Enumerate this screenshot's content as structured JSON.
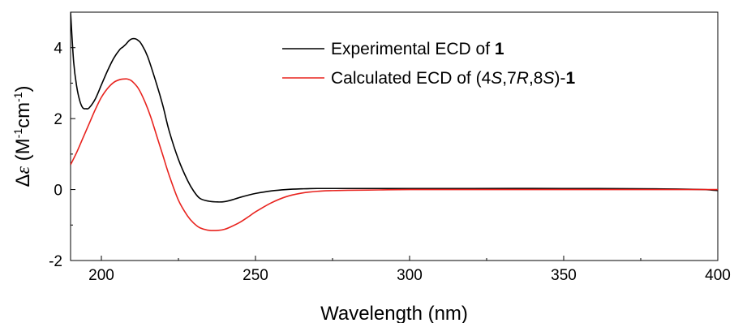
{
  "chart_data": {
    "type": "line",
    "xlabel": "Wavelength (nm)",
    "ylabel": {
      "delta": "Δ",
      "epsilon": "ε",
      "unit_open": " (M",
      "sup1": "-1",
      "cm": "cm",
      "sup2": "-1",
      "unit_close": ")"
    },
    "xlim": [
      190,
      400
    ],
    "ylim": [
      -2,
      5
    ],
    "xticks": [
      200,
      250,
      300,
      350,
      400
    ],
    "yticks": [
      -2,
      0,
      2,
      4
    ],
    "legend_position": "top-right",
    "series": [
      {
        "name_parts": [
          {
            "text": "Experimental ECD of ",
            "style": "normal"
          },
          {
            "text": "1",
            "style": "bold"
          }
        ],
        "color": "#000000",
        "x": [
          190,
          191,
          192,
          193,
          194,
          195,
          196,
          198,
          200,
          202,
          204,
          206,
          207,
          208,
          209,
          210,
          211,
          212,
          213,
          215,
          218,
          220,
          222,
          225,
          228,
          230,
          232,
          235,
          238,
          240,
          242,
          245,
          248,
          250,
          255,
          260,
          265,
          270,
          280,
          290,
          300,
          320,
          350,
          380,
          395,
          400
        ],
        "y": [
          5.0,
          3.6,
          2.9,
          2.5,
          2.3,
          2.28,
          2.3,
          2.55,
          2.95,
          3.35,
          3.7,
          3.95,
          4.02,
          4.1,
          4.2,
          4.25,
          4.25,
          4.2,
          4.1,
          3.75,
          2.95,
          2.35,
          1.65,
          0.85,
          0.25,
          -0.05,
          -0.25,
          -0.33,
          -0.35,
          -0.34,
          -0.3,
          -0.22,
          -0.15,
          -0.11,
          -0.04,
          0.0,
          0.02,
          0.03,
          0.03,
          0.03,
          0.03,
          0.03,
          0.03,
          0.02,
          0.0,
          -0.03
        ]
      },
      {
        "name_parts": [
          {
            "text": "Calculated ECD of (4",
            "style": "normal"
          },
          {
            "text": "S",
            "style": "italic"
          },
          {
            "text": ",7",
            "style": "normal"
          },
          {
            "text": "R",
            "style": "italic"
          },
          {
            "text": ",8",
            "style": "normal"
          },
          {
            "text": "S",
            "style": "italic"
          },
          {
            "text": ")-",
            "style": "normal"
          },
          {
            "text": "1",
            "style": "bold"
          }
        ],
        "color": "#e8231e",
        "x": [
          190,
          192,
          194,
          196,
          198,
          200,
          202,
          204,
          206,
          208,
          209,
          210,
          212,
          214,
          216,
          218,
          220,
          222,
          225,
          228,
          230,
          232,
          235,
          238,
          240,
          242,
          245,
          248,
          250,
          255,
          260,
          265,
          270,
          275,
          280,
          290,
          300,
          320,
          350,
          380,
          400
        ],
        "y": [
          0.7,
          1.05,
          1.45,
          1.85,
          2.25,
          2.6,
          2.85,
          3.02,
          3.1,
          3.12,
          3.1,
          3.05,
          2.85,
          2.5,
          2.05,
          1.5,
          0.95,
          0.4,
          -0.3,
          -0.75,
          -0.95,
          -1.08,
          -1.15,
          -1.15,
          -1.12,
          -1.05,
          -0.92,
          -0.75,
          -0.63,
          -0.38,
          -0.2,
          -0.1,
          -0.05,
          -0.03,
          -0.02,
          -0.01,
          0.0,
          0.0,
          0.0,
          0.0,
          0.0
        ]
      }
    ]
  }
}
